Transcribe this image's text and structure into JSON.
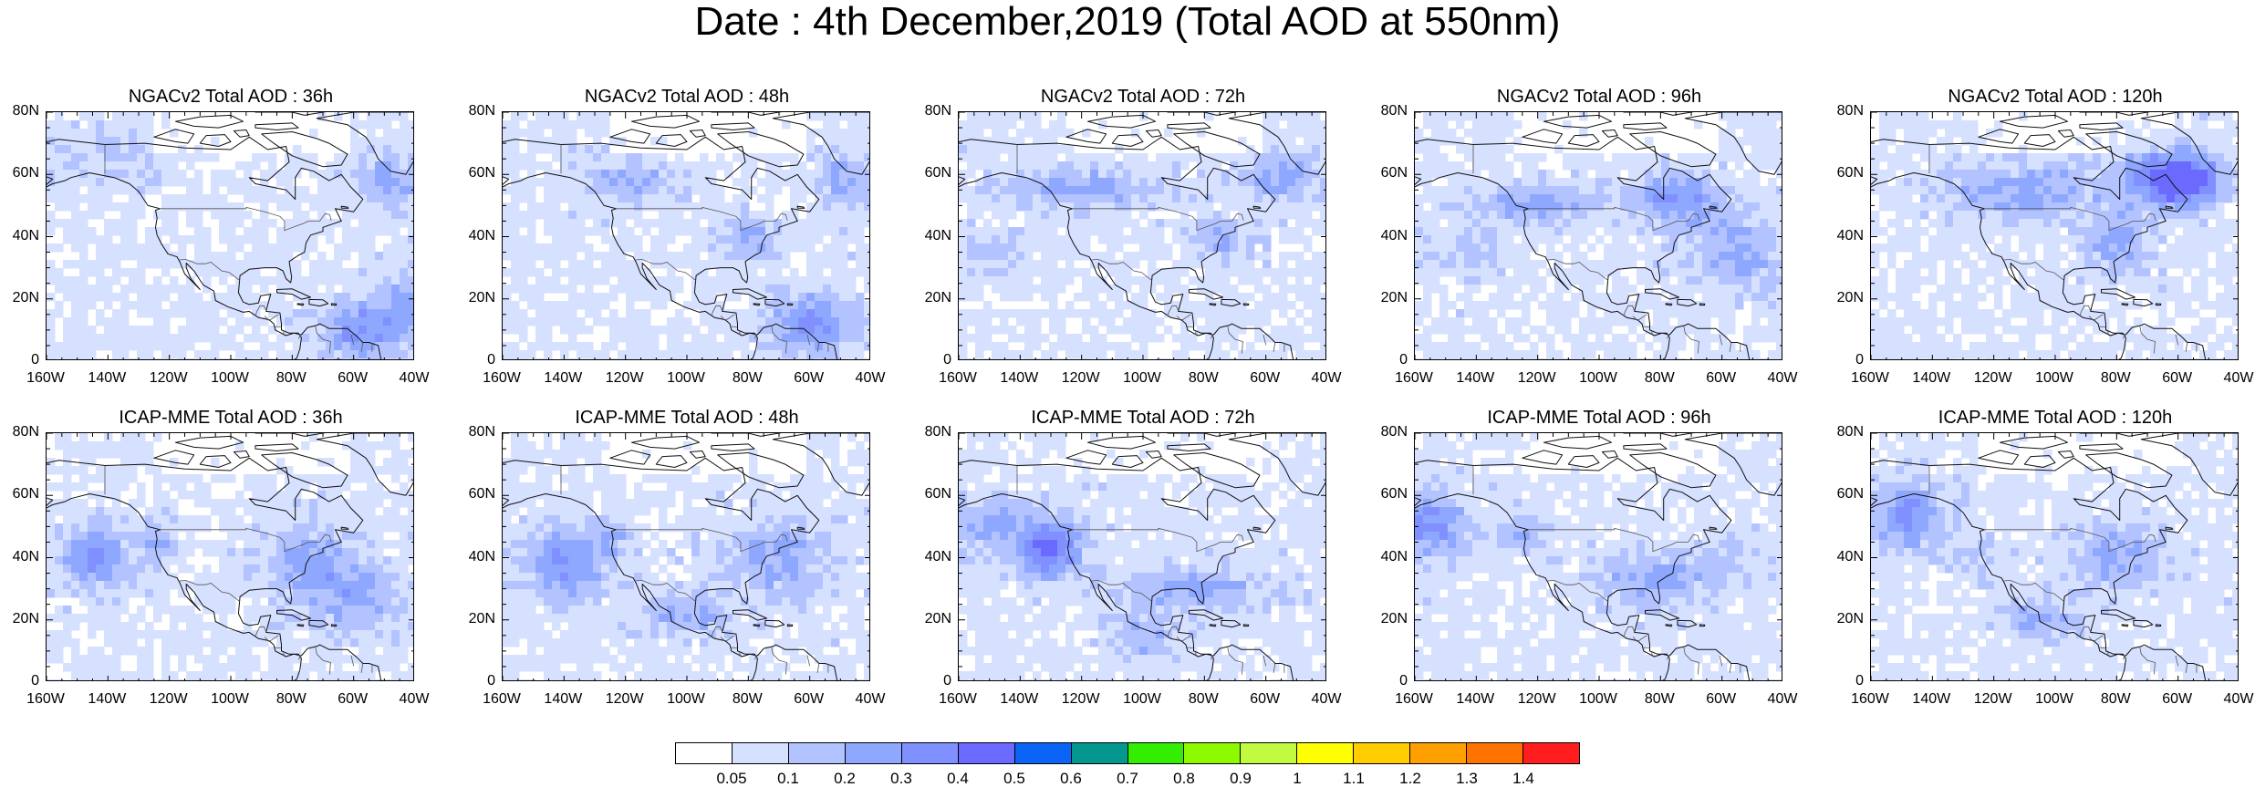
{
  "title": "Date : 4th December,2019 (Total AOD at 550nm)",
  "rows": [
    {
      "model": "NGACv2",
      "panels": [
        {
          "title": "NGACv2 Total AOD : 36h",
          "hotspots": [
            [
              -57,
              10,
              12,
              9,
              3
            ],
            [
              -48,
              58,
              10,
              8,
              2
            ],
            [
              -140,
              65,
              18,
              8,
              1
            ],
            [
              -40,
              20,
              10,
              10,
              2
            ]
          ]
        },
        {
          "title": "NGACv2 Total AOD : 48h",
          "hotspots": [
            [
              -60,
              12,
              12,
              9,
              3
            ],
            [
              -120,
              58,
              14,
              6,
              2
            ],
            [
              -80,
              40,
              8,
              6,
              2
            ],
            [
              -48,
              58,
              8,
              8,
              2
            ]
          ]
        },
        {
          "title": "NGACv2 Total AOD : 72h",
          "hotspots": [
            [
              -120,
              56,
              25,
              6,
              2
            ],
            [
              -55,
              60,
              12,
              8,
              2
            ],
            [
              -150,
              35,
              12,
              6,
              1
            ],
            [
              -75,
              38,
              8,
              6,
              2
            ]
          ]
        },
        {
          "title": "NGACv2 Total AOD : 96h",
          "hotspots": [
            [
              -75,
              52,
              12,
              8,
              3
            ],
            [
              -55,
              35,
              14,
              12,
              2
            ],
            [
              -120,
              50,
              20,
              6,
              2
            ],
            [
              -145,
              35,
              15,
              6,
              1
            ]
          ]
        },
        {
          "title": "NGACv2 Total AOD : 120h",
          "hotspots": [
            [
              -57,
              58,
              10,
              6,
              5
            ],
            [
              -65,
              60,
              14,
              10,
              3
            ],
            [
              -110,
              55,
              25,
              8,
              2
            ],
            [
              -80,
              38,
              10,
              10,
              2
            ]
          ]
        }
      ]
    },
    {
      "model": "ICAP-MME",
      "panels": [
        {
          "title": "ICAP-MME Total AOD : 36h",
          "hotspots": [
            [
              -144,
              40,
              10,
              9,
              3
            ],
            [
              -124,
              45,
              5,
              6,
              2
            ],
            [
              -75,
              40,
              14,
              10,
              2
            ],
            [
              -60,
              28,
              16,
              10,
              2
            ]
          ]
        },
        {
          "title": "ICAP-MME Total AOD : 48h",
          "hotspots": [
            [
              -140,
              38,
              12,
              10,
              3
            ],
            [
              -125,
              46,
              5,
              6,
              2
            ],
            [
              -70,
              40,
              16,
              12,
              2
            ],
            [
              -100,
              22,
              12,
              6,
              2
            ]
          ]
        },
        {
          "title": "ICAP-MME Total AOD : 72h",
          "hotspots": [
            [
              -130,
              43,
              10,
              9,
              4
            ],
            [
              -150,
              50,
              14,
              8,
              2
            ],
            [
              -85,
              30,
              25,
              6,
              2
            ],
            [
              -100,
              15,
              10,
              6,
              2
            ]
          ]
        },
        {
          "title": "ICAP-MME Total AOD : 96h",
          "hotspots": [
            [
              -155,
              50,
              12,
              10,
              3
            ],
            [
              -124,
              48,
              6,
              6,
              2
            ],
            [
              -85,
              33,
              15,
              8,
              2
            ],
            [
              -60,
              38,
              14,
              8,
              1
            ]
          ]
        },
        {
          "title": "ICAP-MME Total AOD : 120h",
          "hotspots": [
            [
              -148,
              53,
              12,
              10,
              3
            ],
            [
              -80,
              40,
              15,
              10,
              2
            ],
            [
              -105,
              20,
              10,
              6,
              2
            ],
            [
              -125,
              40,
              8,
              6,
              1
            ]
          ]
        }
      ]
    }
  ],
  "y_tick_labels": [
    "0",
    "20N",
    "40N",
    "60N",
    "80N"
  ],
  "x_tick_labels": [
    "160W",
    "140W",
    "120W",
    "100W",
    "80W",
    "60W",
    "40W"
  ],
  "map_extent": {
    "lon": [
      -160,
      -40
    ],
    "lat": [
      0,
      80
    ]
  },
  "colorbar": {
    "colors": [
      "#ffffff",
      "#d6e0ff",
      "#b2c3ff",
      "#8fa8ff",
      "#8090ff",
      "#6a6aff",
      "#0a64f8",
      "#04978f",
      "#33ee00",
      "#8dfa00",
      "#c2fa42",
      "#ffff00",
      "#ffcd00",
      "#ffa000",
      "#ff7400",
      "#ff1d1d"
    ],
    "labels": [
      "0.05",
      "0.1",
      "0.2",
      "0.3",
      "0.4",
      "0.5",
      "0.6",
      "0.7",
      "0.8",
      "0.9",
      "1",
      "1.1",
      "1.2",
      "1.3",
      "1.4"
    ]
  }
}
